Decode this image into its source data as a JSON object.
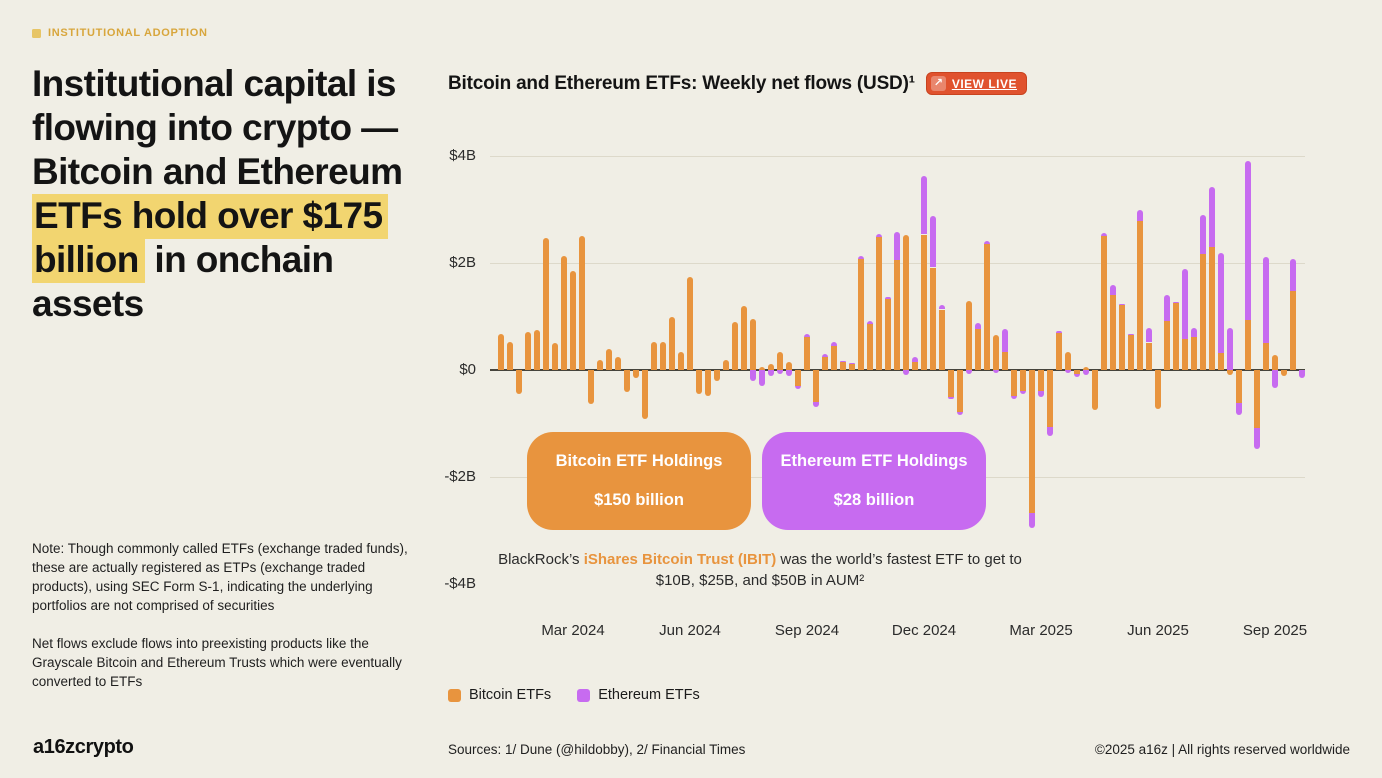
{
  "eyebrow": {
    "label": "INSTITUTIONAL ADOPTION"
  },
  "headline": {
    "part1": "Institutional capital is flowing into crypto — Bitcoin and Ethereum ",
    "highlight": "ETFs hold over $175 billion",
    "part2": " in onchain assets"
  },
  "notes": {
    "para1": "Note: Though commonly called ETFs (exchange traded funds), these are actually registered as ETPs (exchange traded products), using SEC Form S-1, indicating the underlying portfolios are not comprised of securities",
    "para2": "Net flows exclude flows into preexisting products like the Grayscale Bitcoin and Ethereum Trusts which were eventually converted to ETFs"
  },
  "logo": "a16zcrypto",
  "chart": {
    "title": "Bitcoin and Ethereum ETFs: Weekly net flows (USD)¹",
    "view_live": {
      "label": "VIEW LIVE",
      "icon": "arrow-up-right"
    },
    "callouts": {
      "btc": {
        "title": "Bitcoin ETF Holdings",
        "value": "$150 billion"
      },
      "eth": {
        "title": "Ethereum ETF Holdings",
        "value": "$28 billion"
      }
    },
    "caption": {
      "pre": "BlackRock’s ",
      "em": "iShares Bitcoin Trust (IBIT)",
      "post": " was the world’s fastest ETF to get to $10B, $25B, and $50B in AUM²"
    }
  },
  "colors": {
    "background": "#F0EEE5",
    "bitcoin_orange": "#E8943E",
    "ethereum_purple": "#C76BF0",
    "highlight_yellow": "#F2D570",
    "eyebrow_gold": "#D8A63C",
    "view_live_red": "#E0522E"
  },
  "chart_data": {
    "type": "bar",
    "stacked": true,
    "title": "Bitcoin and Ethereum ETFs: Weekly net flows (USD)",
    "unit": "USD billions",
    "frequency": "weekly",
    "grid": true,
    "legend_position": "bottom-left",
    "y_axis": {
      "tick_labels": [
        "$4B",
        "$2B",
        "$0",
        "-$2B",
        "-$4B"
      ],
      "tick_values": [
        4,
        2,
        0,
        -2,
        -4
      ],
      "range": [
        -4,
        4
      ]
    },
    "x_axis": {
      "tick_labels": [
        "Mar 2024",
        "Jun 2024",
        "Sep 2024",
        "Dec 2024",
        "Mar 2025",
        "Jun 2025",
        "Sep 2025"
      ],
      "tick_week_indices": [
        8,
        21,
        34,
        47,
        60,
        73,
        86
      ],
      "start": "Jan 2024",
      "end": "Oct 2025",
      "n_weeks": 90
    },
    "series": [
      {
        "name": "Bitcoin ETFs",
        "color": "#E8943E",
        "values": [
          0.68,
          0.52,
          -0.44,
          0.71,
          0.75,
          2.46,
          0.5,
          2.13,
          1.85,
          2.5,
          -0.64,
          0.19,
          0.39,
          0.24,
          -0.42,
          -0.15,
          -0.91,
          0.52,
          0.53,
          0.99,
          0.33,
          1.73,
          -0.45,
          -0.48,
          -0.21,
          0.19,
          0.9,
          1.2,
          0.95,
          0.05,
          0.12,
          0.33,
          0.15,
          -0.3,
          0.62,
          -0.6,
          0.25,
          0.45,
          0.15,
          0.12,
          2.08,
          0.87,
          2.48,
          1.32,
          2.05,
          2.53,
          0.15,
          2.53,
          1.91,
          1.13,
          -0.5,
          -0.78,
          1.29,
          0.76,
          2.36,
          0.65,
          0.34,
          -0.48,
          -0.39,
          -2.67,
          -0.4,
          -1.07,
          0.7,
          0.34,
          -0.08,
          0.05,
          -0.75,
          2.5,
          1.4,
          1.22,
          0.65,
          2.8,
          0.51,
          -0.73,
          0.93,
          1.26,
          0.58,
          0.62,
          2.17,
          2.29,
          0.32,
          -0.09,
          -0.62,
          0.93,
          -1.09,
          0.5,
          0.28,
          -0.12,
          1.49,
          0.0
        ]
      },
      {
        "name": "Ethereum ETFs",
        "color": "#C76BF0",
        "values": [
          0,
          0,
          0,
          0,
          0,
          0,
          0,
          0,
          0,
          0,
          0,
          0,
          0,
          0,
          0,
          0,
          0,
          0,
          0,
          0,
          0,
          0,
          0,
          0,
          0,
          0,
          0,
          0,
          -0.2,
          -0.3,
          -0.12,
          -0.08,
          -0.12,
          -0.05,
          0.05,
          -0.1,
          0.05,
          0.08,
          0.02,
          0.02,
          0.05,
          0.05,
          0.06,
          0.04,
          0.53,
          -0.1,
          0.1,
          1.09,
          0.96,
          0.08,
          -0.04,
          -0.05,
          -0.08,
          0.12,
          0.06,
          -0.06,
          0.43,
          -0.05,
          -0.06,
          -0.28,
          -0.12,
          -0.16,
          0.03,
          -0.05,
          -0.06,
          -0.1,
          0.0,
          0.06,
          0.19,
          0.02,
          0.02,
          0.2,
          0.27,
          0.0,
          0.48,
          0.02,
          1.3,
          0.17,
          0.73,
          1.13,
          1.86,
          0.78,
          -0.23,
          2.97,
          -0.4,
          1.61,
          -0.34,
          0.0,
          0.59,
          -0.15
        ]
      }
    ]
  },
  "footer": {
    "sources": "Sources: 1/ Dune (@hildobby), 2/ Financial Times",
    "copyright": "©2025 a16z | All rights reserved worldwide"
  }
}
